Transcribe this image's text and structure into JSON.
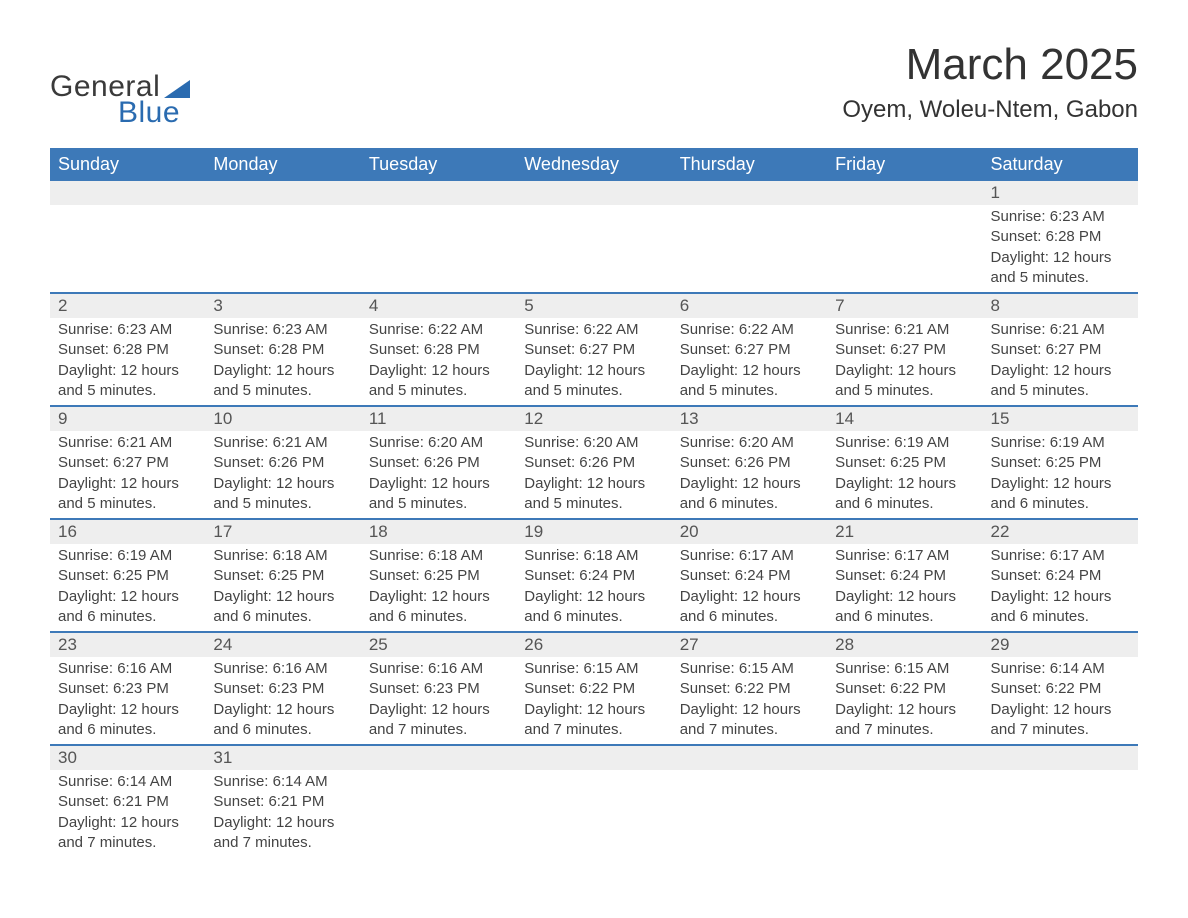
{
  "brand": {
    "part1": "General",
    "part2": "Blue",
    "accent_color": "#2a6bb0"
  },
  "title": "March 2025",
  "location": "Oyem, Woleu-Ntem, Gabon",
  "header_bg": "#3d79b8",
  "daynum_bg": "#eeeeee",
  "row_border": "#3d79b8",
  "day_headers": [
    "Sunday",
    "Monday",
    "Tuesday",
    "Wednesday",
    "Thursday",
    "Friday",
    "Saturday"
  ],
  "weeks": [
    [
      null,
      null,
      null,
      null,
      null,
      null,
      {
        "n": "1",
        "sr": "Sunrise: 6:23 AM",
        "ss": "Sunset: 6:28 PM",
        "dl": "Daylight: 12 hours and 5 minutes."
      }
    ],
    [
      {
        "n": "2",
        "sr": "Sunrise: 6:23 AM",
        "ss": "Sunset: 6:28 PM",
        "dl": "Daylight: 12 hours and 5 minutes."
      },
      {
        "n": "3",
        "sr": "Sunrise: 6:23 AM",
        "ss": "Sunset: 6:28 PM",
        "dl": "Daylight: 12 hours and 5 minutes."
      },
      {
        "n": "4",
        "sr": "Sunrise: 6:22 AM",
        "ss": "Sunset: 6:28 PM",
        "dl": "Daylight: 12 hours and 5 minutes."
      },
      {
        "n": "5",
        "sr": "Sunrise: 6:22 AM",
        "ss": "Sunset: 6:27 PM",
        "dl": "Daylight: 12 hours and 5 minutes."
      },
      {
        "n": "6",
        "sr": "Sunrise: 6:22 AM",
        "ss": "Sunset: 6:27 PM",
        "dl": "Daylight: 12 hours and 5 minutes."
      },
      {
        "n": "7",
        "sr": "Sunrise: 6:21 AM",
        "ss": "Sunset: 6:27 PM",
        "dl": "Daylight: 12 hours and 5 minutes."
      },
      {
        "n": "8",
        "sr": "Sunrise: 6:21 AM",
        "ss": "Sunset: 6:27 PM",
        "dl": "Daylight: 12 hours and 5 minutes."
      }
    ],
    [
      {
        "n": "9",
        "sr": "Sunrise: 6:21 AM",
        "ss": "Sunset: 6:27 PM",
        "dl": "Daylight: 12 hours and 5 minutes."
      },
      {
        "n": "10",
        "sr": "Sunrise: 6:21 AM",
        "ss": "Sunset: 6:26 PM",
        "dl": "Daylight: 12 hours and 5 minutes."
      },
      {
        "n": "11",
        "sr": "Sunrise: 6:20 AM",
        "ss": "Sunset: 6:26 PM",
        "dl": "Daylight: 12 hours and 5 minutes."
      },
      {
        "n": "12",
        "sr": "Sunrise: 6:20 AM",
        "ss": "Sunset: 6:26 PM",
        "dl": "Daylight: 12 hours and 5 minutes."
      },
      {
        "n": "13",
        "sr": "Sunrise: 6:20 AM",
        "ss": "Sunset: 6:26 PM",
        "dl": "Daylight: 12 hours and 6 minutes."
      },
      {
        "n": "14",
        "sr": "Sunrise: 6:19 AM",
        "ss": "Sunset: 6:25 PM",
        "dl": "Daylight: 12 hours and 6 minutes."
      },
      {
        "n": "15",
        "sr": "Sunrise: 6:19 AM",
        "ss": "Sunset: 6:25 PM",
        "dl": "Daylight: 12 hours and 6 minutes."
      }
    ],
    [
      {
        "n": "16",
        "sr": "Sunrise: 6:19 AM",
        "ss": "Sunset: 6:25 PM",
        "dl": "Daylight: 12 hours and 6 minutes."
      },
      {
        "n": "17",
        "sr": "Sunrise: 6:18 AM",
        "ss": "Sunset: 6:25 PM",
        "dl": "Daylight: 12 hours and 6 minutes."
      },
      {
        "n": "18",
        "sr": "Sunrise: 6:18 AM",
        "ss": "Sunset: 6:25 PM",
        "dl": "Daylight: 12 hours and 6 minutes."
      },
      {
        "n": "19",
        "sr": "Sunrise: 6:18 AM",
        "ss": "Sunset: 6:24 PM",
        "dl": "Daylight: 12 hours and 6 minutes."
      },
      {
        "n": "20",
        "sr": "Sunrise: 6:17 AM",
        "ss": "Sunset: 6:24 PM",
        "dl": "Daylight: 12 hours and 6 minutes."
      },
      {
        "n": "21",
        "sr": "Sunrise: 6:17 AM",
        "ss": "Sunset: 6:24 PM",
        "dl": "Daylight: 12 hours and 6 minutes."
      },
      {
        "n": "22",
        "sr": "Sunrise: 6:17 AM",
        "ss": "Sunset: 6:24 PM",
        "dl": "Daylight: 12 hours and 6 minutes."
      }
    ],
    [
      {
        "n": "23",
        "sr": "Sunrise: 6:16 AM",
        "ss": "Sunset: 6:23 PM",
        "dl": "Daylight: 12 hours and 6 minutes."
      },
      {
        "n": "24",
        "sr": "Sunrise: 6:16 AM",
        "ss": "Sunset: 6:23 PM",
        "dl": "Daylight: 12 hours and 6 minutes."
      },
      {
        "n": "25",
        "sr": "Sunrise: 6:16 AM",
        "ss": "Sunset: 6:23 PM",
        "dl": "Daylight: 12 hours and 7 minutes."
      },
      {
        "n": "26",
        "sr": "Sunrise: 6:15 AM",
        "ss": "Sunset: 6:22 PM",
        "dl": "Daylight: 12 hours and 7 minutes."
      },
      {
        "n": "27",
        "sr": "Sunrise: 6:15 AM",
        "ss": "Sunset: 6:22 PM",
        "dl": "Daylight: 12 hours and 7 minutes."
      },
      {
        "n": "28",
        "sr": "Sunrise: 6:15 AM",
        "ss": "Sunset: 6:22 PM",
        "dl": "Daylight: 12 hours and 7 minutes."
      },
      {
        "n": "29",
        "sr": "Sunrise: 6:14 AM",
        "ss": "Sunset: 6:22 PM",
        "dl": "Daylight: 12 hours and 7 minutes."
      }
    ],
    [
      {
        "n": "30",
        "sr": "Sunrise: 6:14 AM",
        "ss": "Sunset: 6:21 PM",
        "dl": "Daylight: 12 hours and 7 minutes."
      },
      {
        "n": "31",
        "sr": "Sunrise: 6:14 AM",
        "ss": "Sunset: 6:21 PM",
        "dl": "Daylight: 12 hours and 7 minutes."
      },
      null,
      null,
      null,
      null,
      null
    ]
  ]
}
